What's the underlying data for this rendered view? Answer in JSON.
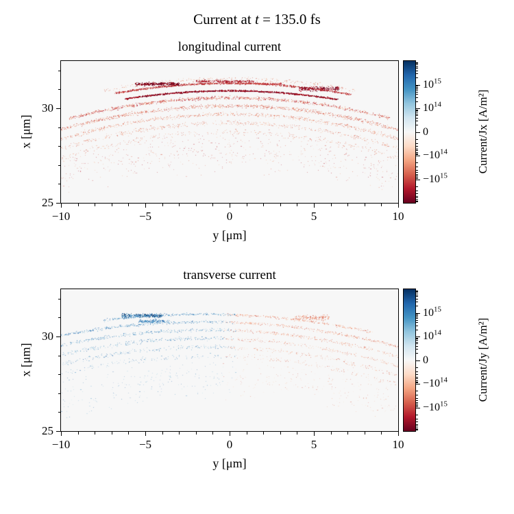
{
  "title": {
    "prefix": "Current at ",
    "var": "t",
    "suffix": " = 135.0 fs",
    "full": "Current at t = 135.0 fs"
  },
  "chart_data": [
    {
      "type": "scatter",
      "title": "longitudinal current",
      "xlabel": "y [μm]",
      "ylabel": "x [μm]",
      "xlim": [
        -10,
        10
      ],
      "ylim": [
        25,
        32.5
      ],
      "xticks": [
        -10,
        -5,
        0,
        5,
        10
      ],
      "yticks": [
        25,
        30
      ],
      "xtick_labels": [
        "−10",
        "−5",
        "0",
        "5",
        "10"
      ],
      "ytick_labels": [
        "25",
        "30"
      ],
      "background": "#f7f7f7",
      "colorbar": {
        "label": "Current/Jx [A/m²]",
        "scale": "symlog",
        "linthresh": 10000000000000.0,
        "vmin": -1e+16,
        "vmax": 1e+16,
        "colormap": "RdBu",
        "colors": [
          "#053061",
          "#2166ac",
          "#4393c3",
          "#92c5de",
          "#d1e5f0",
          "#f7f7f7",
          "#fddbc7",
          "#f4a582",
          "#d6604d",
          "#b2182b",
          "#67001f"
        ],
        "tick_values": [
          1000000000000000.0,
          100000000000000.0,
          0,
          -100000000000000.0,
          -1000000000000000.0
        ],
        "tick_labels": [
          "10^15",
          "10^14",
          "0",
          "−10^14",
          "−10^15"
        ]
      },
      "structure_note": "All current negative (red shades): nested dome-shaped particle bands peaking near x=31.3 μm at y=0, arcing down to x≈30 at |y|=10; dense dark-red streak at x≈30.9 for |y|<6.5; sparse speckle below down to x≈25.3",
      "bands": [
        {
          "x_peak": 31.55,
          "curvature": 1.1,
          "tilt": 0,
          "sigma": 0.12,
          "span": [
            -7.5,
            7.5
          ],
          "n": 250,
          "colors": [
            "#d6604d",
            "#f4a582"
          ],
          "alpha": [
            0.3,
            0.65
          ]
        },
        {
          "x_peak": 31.32,
          "curvature": 1.15,
          "tilt": 0,
          "sigma": 0.06,
          "span": [
            -6.8,
            7.2
          ],
          "n": 1100,
          "colors": [
            "#b2182b",
            "#d6604d",
            "#a50f15"
          ],
          "alpha": [
            0.5,
            0.95
          ]
        },
        {
          "x_peak": 30.92,
          "curvature": 1.12,
          "tilt": 0,
          "sigma": 0.045,
          "span": [
            -6.2,
            6.4
          ],
          "n": 1500,
          "colors": [
            "#67001f",
            "#99000d",
            "#b2182b"
          ],
          "alpha": [
            0.75,
            1.0
          ]
        },
        {
          "x_peak": 30.55,
          "curvature": 1.2,
          "tilt": 0,
          "sigma": 0.1,
          "span": [
            -9.5,
            9.5
          ],
          "n": 1000,
          "colors": [
            "#b2182b",
            "#d6604d",
            "#f4a582"
          ],
          "alpha": [
            0.45,
            0.85
          ]
        },
        {
          "x_peak": 30.12,
          "curvature": 1.25,
          "tilt": 0,
          "sigma": 0.12,
          "span": [
            -10,
            10
          ],
          "n": 900,
          "colors": [
            "#cb4a42",
            "#d6604d",
            "#f4a582"
          ],
          "alpha": [
            0.4,
            0.8
          ]
        },
        {
          "x_peak": 29.68,
          "curvature": 1.3,
          "tilt": 0,
          "sigma": 0.13,
          "span": [
            -10,
            10
          ],
          "n": 650,
          "colors": [
            "#d6604d",
            "#f4a582"
          ],
          "alpha": [
            0.35,
            0.72
          ]
        },
        {
          "x_peak": 29.22,
          "curvature": 1.35,
          "tilt": 0,
          "sigma": 0.15,
          "span": [
            -10,
            10
          ],
          "n": 450,
          "colors": [
            "#d6604d",
            "#f4a582"
          ],
          "alpha": [
            0.3,
            0.65
          ]
        },
        {
          "x_peak": 28.75,
          "curvature": 1.4,
          "tilt": 0,
          "sigma": 0.2,
          "span": [
            -10,
            10
          ],
          "n": 280,
          "colors": [
            "#d6604d",
            "#f4a582"
          ],
          "alpha": [
            0.28,
            0.6
          ]
        },
        {
          "x_peak": 27.8,
          "curvature": 1.3,
          "tilt": 0,
          "sigma": 1.3,
          "span": [
            -10,
            10
          ],
          "n": 550,
          "colors": [
            "#d6604d",
            "#f4a582",
            "#b2182b"
          ],
          "alpha": [
            0.22,
            0.5
          ]
        }
      ],
      "clusters": [
        {
          "y0": -4.3,
          "x0": 31.28,
          "w": 2.6,
          "h": 0.1,
          "n": 300,
          "colors": [
            "#67001f",
            "#99000d"
          ],
          "alpha": [
            0.8,
            1.0
          ]
        },
        {
          "y0": 5.3,
          "x0": 31.03,
          "w": 2.4,
          "h": 0.14,
          "n": 280,
          "colors": [
            "#67001f",
            "#b2182b"
          ],
          "alpha": [
            0.75,
            1.0
          ]
        },
        {
          "y0": -0.3,
          "x0": 31.42,
          "w": 3.4,
          "h": 0.07,
          "n": 220,
          "colors": [
            "#99000d",
            "#b2182b"
          ],
          "alpha": [
            0.6,
            0.95
          ]
        },
        {
          "y0": 2.0,
          "x0": 31.3,
          "w": 2.2,
          "h": 0.07,
          "n": 150,
          "colors": [
            "#b2182b",
            "#d6604d"
          ],
          "alpha": [
            0.55,
            0.9
          ]
        }
      ]
    },
    {
      "type": "scatter",
      "title": "transverse current",
      "xlabel": "y [μm]",
      "ylabel": "x [μm]",
      "xlim": [
        -10,
        10
      ],
      "ylim": [
        25,
        32.5
      ],
      "xticks": [
        -10,
        -5,
        0,
        5,
        10
      ],
      "yticks": [
        25,
        30
      ],
      "xtick_labels": [
        "−10",
        "−5",
        "0",
        "5",
        "10"
      ],
      "ytick_labels": [
        "25",
        "30"
      ],
      "background": "#f7f7f7",
      "colorbar": {
        "label": "Current/Jy [A/m²]",
        "scale": "symlog",
        "linthresh": 10000000000000.0,
        "vmin": -1e+16,
        "vmax": 1e+16,
        "colormap": "RdBu",
        "colors": [
          "#053061",
          "#2166ac",
          "#4393c3",
          "#92c5de",
          "#d1e5f0",
          "#f7f7f7",
          "#fddbc7",
          "#f4a582",
          "#d6604d",
          "#b2182b",
          "#67001f"
        ],
        "tick_values": [
          1000000000000000.0,
          100000000000000.0,
          0,
          -100000000000000.0,
          -1000000000000000.0
        ],
        "tick_labels": [
          "10^15",
          "10^14",
          "0",
          "−10^14",
          "−10^15"
        ]
      },
      "structure_note": "Same dome-shaped band geometry but antisymmetric sign: left half (y<0) positive/blue, right half (y>0) negative/orange-red; sparser than longitudinal panel; dark blue cluster near (y=−5, x=31.1), orange cluster near (y=5, x=31)",
      "colors_left": [
        "#4393c3",
        "#2166ac",
        "#92c5de"
      ],
      "colors_right": [
        "#f4a582",
        "#d6604d",
        "#fddbc7"
      ],
      "bands": [
        {
          "x_peak": 31.15,
          "curvature": 0.95,
          "tilt": -0.03,
          "sigma": 0.07,
          "span": [
            -7.5,
            8.5
          ],
          "n": 550,
          "alpha": [
            0.4,
            0.8
          ]
        },
        {
          "x_peak": 30.75,
          "curvature": 1.0,
          "tilt": -0.03,
          "sigma": 0.09,
          "span": [
            -10,
            10
          ],
          "n": 680,
          "alpha": [
            0.35,
            0.75
          ]
        },
        {
          "x_peak": 30.32,
          "curvature": 1.08,
          "tilt": -0.03,
          "sigma": 0.11,
          "span": [
            -10,
            10
          ],
          "n": 580,
          "alpha": [
            0.32,
            0.7
          ]
        },
        {
          "x_peak": 29.88,
          "curvature": 1.15,
          "tilt": -0.03,
          "sigma": 0.12,
          "span": [
            -10,
            10
          ],
          "n": 470,
          "alpha": [
            0.3,
            0.65
          ]
        },
        {
          "x_peak": 29.42,
          "curvature": 1.2,
          "tilt": -0.03,
          "sigma": 0.14,
          "span": [
            -10,
            10
          ],
          "n": 370,
          "alpha": [
            0.28,
            0.6
          ]
        },
        {
          "x_peak": 28.95,
          "curvature": 1.25,
          "tilt": -0.03,
          "sigma": 0.17,
          "span": [
            -10,
            10
          ],
          "n": 260,
          "alpha": [
            0.25,
            0.55
          ]
        },
        {
          "x_peak": 27.8,
          "curvature": 1.2,
          "tilt": 0,
          "sigma": 1.2,
          "span": [
            -10,
            10
          ],
          "n": 420,
          "alpha": [
            0.18,
            0.45
          ]
        }
      ],
      "clusters": [
        {
          "y0": -5.2,
          "x0": 31.1,
          "w": 2.4,
          "h": 0.12,
          "n": 320,
          "colors": [
            "#2166ac",
            "#053061",
            "#4393c3"
          ],
          "alpha": [
            0.55,
            0.95
          ]
        },
        {
          "y0": -4.5,
          "x0": 30.8,
          "w": 1.8,
          "h": 0.1,
          "n": 160,
          "colors": [
            "#4393c3",
            "#2166ac"
          ],
          "alpha": [
            0.5,
            0.85
          ]
        },
        {
          "y0": 4.9,
          "x0": 31.0,
          "w": 2.0,
          "h": 0.16,
          "n": 170,
          "colors": [
            "#d6604d",
            "#f4a582"
          ],
          "alpha": [
            0.45,
            0.8
          ]
        }
      ]
    }
  ]
}
